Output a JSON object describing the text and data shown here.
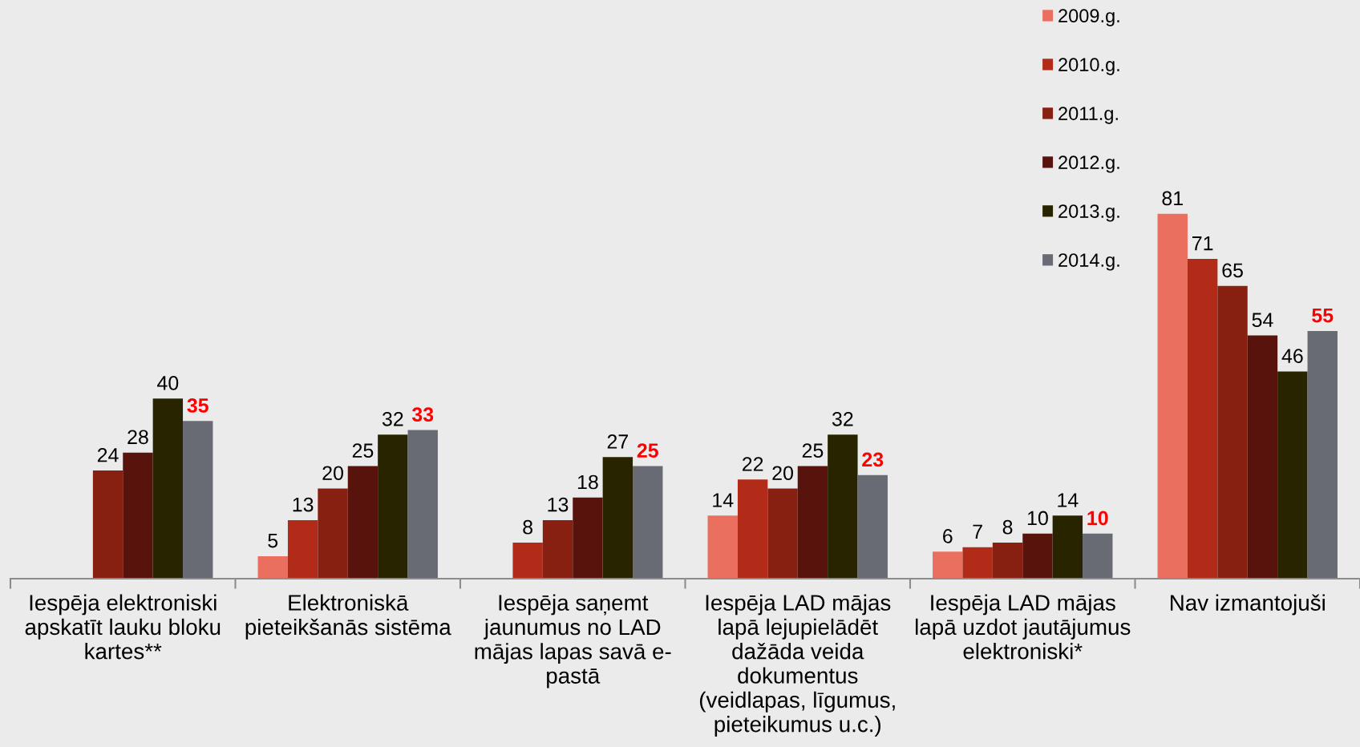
{
  "chart_data": {
    "type": "bar",
    "categories": [
      "Iespēja elektroniski apskatīt lauku bloku kartes**",
      "Elektroniskā pieteikšanās sistēma",
      "Iespēja saņemt jaunumus no LAD mājas lapas savā e-pastā",
      "Iespēja LAD mājas lapā lejupielādēt dažāda veida dokumentus (veidlapas, līgumus, pieteikumus u.c.)",
      "Iespēja LAD mājas lapā uzdot jautājumus elektroniski*",
      "Nav izmantojuši"
    ],
    "series": [
      {
        "name": "2009.g.",
        "color": "#eb6f5e",
        "values": [
          null,
          5,
          null,
          14,
          6,
          81
        ]
      },
      {
        "name": "2010.g.",
        "color": "#b22b18",
        "values": [
          null,
          13,
          8,
          22,
          7,
          71
        ]
      },
      {
        "name": "2011.g.",
        "color": "#872010",
        "values": [
          24,
          20,
          13,
          20,
          8,
          65
        ]
      },
      {
        "name": "2012.g.",
        "color": "#58140c",
        "values": [
          28,
          25,
          18,
          25,
          10,
          54
        ]
      },
      {
        "name": "2013.g.",
        "color": "#282400",
        "values": [
          40,
          32,
          27,
          32,
          14,
          46
        ]
      },
      {
        "name": "2014.g.",
        "color": "#686b74",
        "values": [
          35,
          33,
          25,
          23,
          10,
          55
        ]
      }
    ],
    "data_labels": true,
    "legend": "top right",
    "tick_labels": "x"
  }
}
